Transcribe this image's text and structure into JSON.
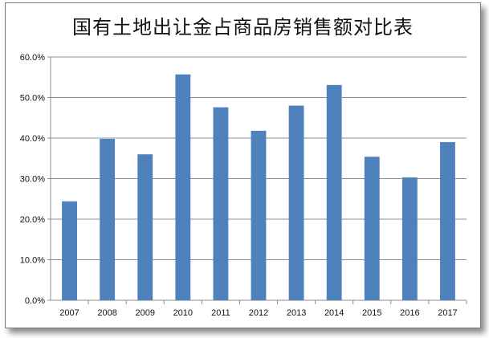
{
  "chart_data": {
    "type": "bar",
    "title": "国有土地出让金占商品房销售额对比表",
    "xlabel": "",
    "ylabel": "",
    "categories": [
      "2007",
      "2008",
      "2009",
      "2010",
      "2011",
      "2012",
      "2013",
      "2014",
      "2015",
      "2016",
      "2017"
    ],
    "values": [
      24.4,
      39.8,
      36.0,
      55.7,
      47.6,
      41.8,
      48.0,
      53.1,
      35.4,
      30.3,
      39.0
    ],
    "ylim": [
      0,
      60
    ],
    "y_ticks": [
      "0.0%",
      "10.0%",
      "20.0%",
      "30.0%",
      "40.0%",
      "50.0%",
      "60.0%"
    ],
    "grid": true,
    "legend": "none",
    "bar_color": "#4f81bd"
  }
}
